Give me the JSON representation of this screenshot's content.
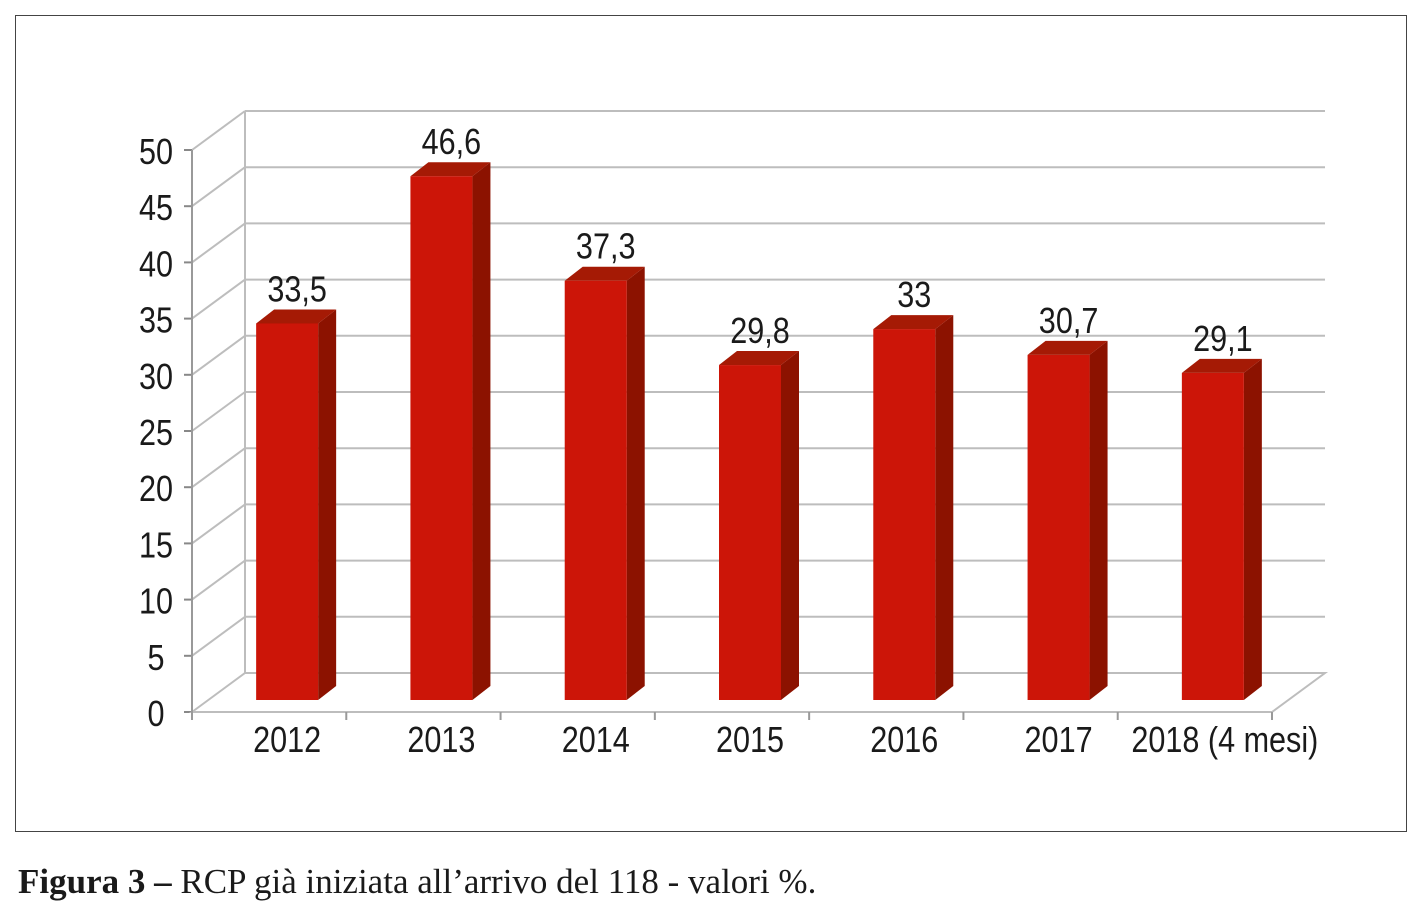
{
  "chart_data": {
    "type": "bar",
    "style": "3d-column",
    "categories": [
      "2012",
      "2013",
      "2014",
      "2015",
      "2016",
      "2017",
      "2018 (4 mesi)"
    ],
    "values": [
      33.5,
      46.6,
      37.3,
      29.8,
      33,
      30.7,
      29.1
    ],
    "data_labels": [
      "33,5",
      "46,6",
      "37,3",
      "29,8",
      "33",
      "30,7",
      "29,1"
    ],
    "ylim": [
      0,
      50
    ],
    "yticks": [
      0,
      5,
      10,
      15,
      20,
      25,
      30,
      35,
      40,
      45,
      50
    ],
    "grid": true,
    "legend": "none",
    "colors": {
      "bar_front": "#cc1508",
      "bar_side": "#8c1200",
      "bar_top": "#a51a05",
      "grid": "#bdbdbd"
    }
  },
  "caption": {
    "label": "Figura 3 –",
    "text": " RCP già iniziata all’arrivo del 118 - valori %."
  }
}
